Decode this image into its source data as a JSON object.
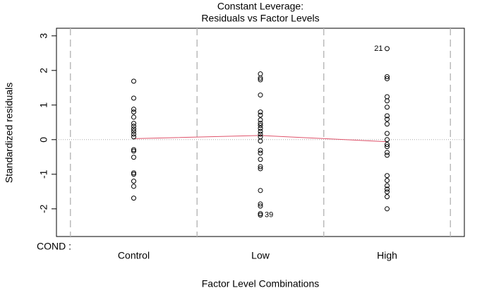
{
  "chart_data": {
    "type": "scatter",
    "title": "Constant Leverage:",
    "subtitle": "Residuals vs Factor Levels",
    "xlabel": "Factor Level Combinations",
    "ylabel": "Standardized residuals",
    "factor_label": "COND :",
    "x": [
      1,
      1,
      1,
      1,
      1,
      1,
      1,
      1,
      1,
      1,
      1,
      1,
      1,
      1,
      1,
      1,
      1,
      1,
      1,
      2,
      2,
      2,
      2,
      2,
      2,
      2,
      2,
      2,
      2,
      2,
      2,
      2,
      2,
      2,
      2,
      2,
      2,
      2,
      2,
      2,
      2,
      2,
      2,
      3,
      3,
      3,
      3,
      3,
      3,
      3,
      3,
      3,
      3,
      3,
      3,
      3,
      3,
      3,
      3,
      3,
      3,
      3,
      3,
      3,
      3
    ],
    "y": [
      1.69,
      1.2,
      0.88,
      0.8,
      0.65,
      0.47,
      0.39,
      0.31,
      0.24,
      0.16,
      0.08,
      -0.29,
      -0.33,
      -0.51,
      -0.96,
      -1.0,
      -1.2,
      -1.35,
      -1.69,
      1.9,
      1.78,
      1.73,
      1.29,
      0.8,
      0.71,
      0.57,
      0.47,
      0.41,
      0.33,
      0.24,
      0.16,
      0.08,
      -0.04,
      -0.31,
      -0.39,
      -0.57,
      -0.78,
      -0.84,
      -1.47,
      -1.86,
      -1.92,
      -2.14,
      -2.18,
      2.63,
      1.82,
      1.76,
      1.24,
      1.12,
      0.94,
      0.69,
      0.59,
      0.45,
      0.18,
      0.0,
      -0.14,
      -0.2,
      -0.37,
      -0.45,
      -1.04,
      -1.18,
      -1.33,
      -1.43,
      -1.51,
      -1.65,
      -2.0
    ],
    "xlim": [
      0.39,
      3.61
    ],
    "ylim": [
      -2.8,
      3.22
    ],
    "xticks": [
      {
        "value": 1,
        "label": "Control"
      },
      {
        "value": 2,
        "label": "Low"
      },
      {
        "value": 3,
        "label": "High"
      }
    ],
    "yticks": [
      -2,
      -1,
      0,
      1,
      2,
      3
    ],
    "separators": [
      0.5,
      1.5,
      2.5,
      3.5
    ],
    "hline": 0,
    "color": "#000000",
    "smooth": {
      "x": [
        1,
        2,
        3
      ],
      "y": [
        0.03,
        0.12,
        -0.06
      ],
      "color": "#DF536B"
    },
    "annotations": [
      {
        "text": "21",
        "x": 3,
        "y": 2.63,
        "side": "left"
      },
      {
        "text": "39",
        "x": 2,
        "y": -2.18,
        "side": "right"
      }
    ]
  }
}
